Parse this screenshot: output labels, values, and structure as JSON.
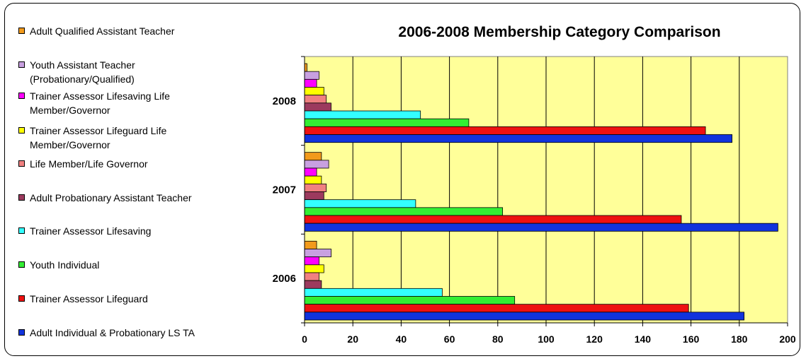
{
  "chart_data": {
    "type": "bar",
    "orientation": "horizontal",
    "title": "2006-2008 Membership Category Comparison",
    "categories": [
      "2008",
      "2007",
      "2006"
    ],
    "series": [
      {
        "name": "Adult Qualified Assistant Teacher",
        "color": "#f29a1b",
        "values": [
          1,
          7,
          5
        ]
      },
      {
        "name": "Youth Assistant Teacher (Probationary/Qualified)",
        "color": "#c8a0e0",
        "values": [
          6,
          10,
          11
        ]
      },
      {
        "name": "Trainer Assessor Lifesaving Life Member/Governor",
        "color": "#ff00ff",
        "values": [
          5,
          5,
          6
        ]
      },
      {
        "name": "Trainer Assessor Lifeguard Life Member/Governor",
        "color": "#ffff00",
        "values": [
          8,
          7,
          8
        ]
      },
      {
        "name": "Life Member/Life Governor",
        "color": "#f08080",
        "values": [
          9,
          9,
          6
        ]
      },
      {
        "name": "Adult Probationary Assistant Teacher",
        "color": "#9c3a5e",
        "values": [
          11,
          8,
          7
        ]
      },
      {
        "name": "Trainer Assessor Lifesaving",
        "color": "#33ffff",
        "values": [
          48,
          46,
          57
        ]
      },
      {
        "name": "Youth Individual",
        "color": "#33ee33",
        "values": [
          68,
          82,
          87
        ]
      },
      {
        "name": "Trainer Assessor Lifeguard",
        "color": "#ee1111",
        "values": [
          166,
          156,
          159
        ]
      },
      {
        "name": "Adult Individual & Probationary LS TA",
        "color": "#1133dd",
        "values": [
          177,
          196,
          182
        ]
      }
    ],
    "xlim": [
      0,
      200
    ],
    "xticks": [
      "0",
      "20",
      "40",
      "60",
      "80",
      "100",
      "120",
      "140",
      "160",
      "180",
      "200"
    ],
    "plot_background": "#ffff99",
    "grid": true,
    "legend_position": "left"
  }
}
